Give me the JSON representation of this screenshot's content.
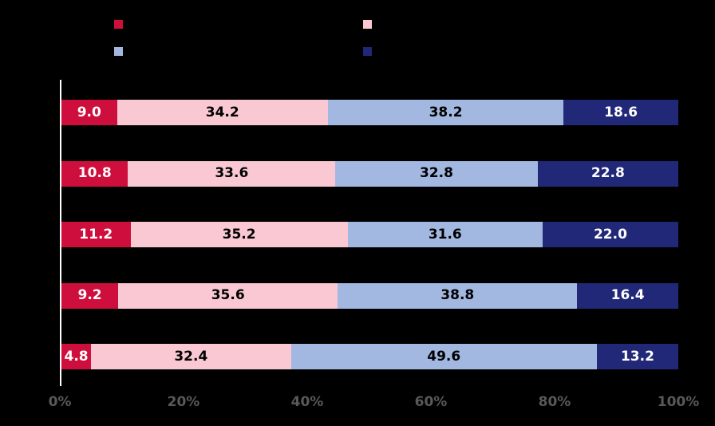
{
  "colors": {
    "background": "#000000",
    "crimson": "#CE0E3C",
    "pink": "#F9C8D3",
    "light_blue": "#A3B8E0",
    "navy": "#212878",
    "axis_line": "#FFFFFF",
    "tick_label": "#595959"
  },
  "legend": {
    "items": [
      {
        "name": "series-1",
        "color": "#CE0E3C",
        "label": ""
      },
      {
        "name": "series-2",
        "color": "#F9C8D3",
        "label": ""
      },
      {
        "name": "series-3",
        "color": "#A3B8E0",
        "label": ""
      },
      {
        "name": "series-4",
        "color": "#212878",
        "label": ""
      }
    ]
  },
  "chart_data": {
    "type": "bar",
    "orientation": "horizontal",
    "stacked": true,
    "title": "",
    "xlabel": "",
    "ylabel": "",
    "categories": [
      "",
      "",
      "",
      "",
      ""
    ],
    "series": [
      {
        "name": "series-1",
        "color": "#CE0E3C",
        "value_label_color": "#FFFFFF",
        "values": [
          9.0,
          10.8,
          11.2,
          9.2,
          4.8
        ]
      },
      {
        "name": "series-2",
        "color": "#F9C8D3",
        "value_label_color": "#000000",
        "values": [
          34.2,
          33.6,
          35.2,
          35.6,
          32.4
        ]
      },
      {
        "name": "series-3",
        "color": "#A3B8E0",
        "value_label_color": "#000000",
        "values": [
          38.2,
          32.8,
          31.6,
          38.8,
          49.6
        ]
      },
      {
        "name": "series-4",
        "color": "#212878",
        "value_label_color": "#FFFFFF",
        "values": [
          18.6,
          22.8,
          22.0,
          16.4,
          13.2
        ]
      }
    ],
    "value_labels": true,
    "x_ticks": [
      "0%",
      "20%",
      "40%",
      "60%",
      "80%",
      "100%"
    ],
    "x_tick_positions": [
      0,
      20,
      40,
      60,
      80,
      100
    ],
    "xlim": [
      0,
      100
    ],
    "grid": false,
    "legend_position": "top"
  }
}
